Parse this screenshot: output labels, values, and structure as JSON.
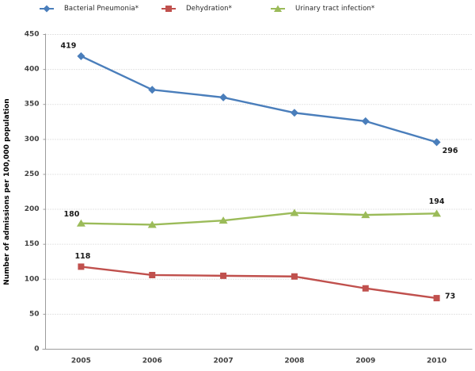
{
  "chart_data": {
    "type": "line",
    "title": "",
    "xlabel": "",
    "ylabel": "Number of admissions per 100,000 population",
    "categories": [
      "2005",
      "2006",
      "2007",
      "2008",
      "2009",
      "2010"
    ],
    "ylim": [
      0,
      450
    ],
    "yticks": [
      0,
      50,
      100,
      150,
      200,
      250,
      300,
      350,
      400,
      450
    ],
    "grid": "horizontal-dotted",
    "legend_position": "top",
    "series": [
      {
        "name": "Bacterial Pneumonia*",
        "color": "#4A7EBB",
        "marker": "diamond",
        "values": [
          419,
          371,
          360,
          338,
          326,
          296
        ],
        "point_labels": [
          {
            "i": 0,
            "text": "419",
            "dx": -16,
            "dy": -13
          },
          {
            "i": 5,
            "text": "296",
            "dx": 17,
            "dy": 11
          }
        ]
      },
      {
        "name": "Dehydration*",
        "color": "#C0504D",
        "marker": "square",
        "values": [
          118,
          106,
          105,
          104,
          87,
          73
        ],
        "point_labels": [
          {
            "i": 0,
            "text": "118",
            "dx": 2,
            "dy": -13
          },
          {
            "i": 5,
            "text": "73",
            "dx": 17,
            "dy": -2
          }
        ]
      },
      {
        "name": "Urinary tract infection*",
        "color": "#9BBB59",
        "marker": "triangle",
        "values": [
          180,
          178,
          184,
          195,
          192,
          194
        ],
        "point_labels": [
          {
            "i": 0,
            "text": "180",
            "dx": -12,
            "dy": -11
          },
          {
            "i": 5,
            "text": "194",
            "dx": 0,
            "dy": -15
          }
        ]
      }
    ]
  },
  "style": {
    "gridline_color": "#C9C9C9",
    "axis_color": "#9C9C9C",
    "tick_label_color": "#404040",
    "data_label_color": "#1A1A1A"
  }
}
